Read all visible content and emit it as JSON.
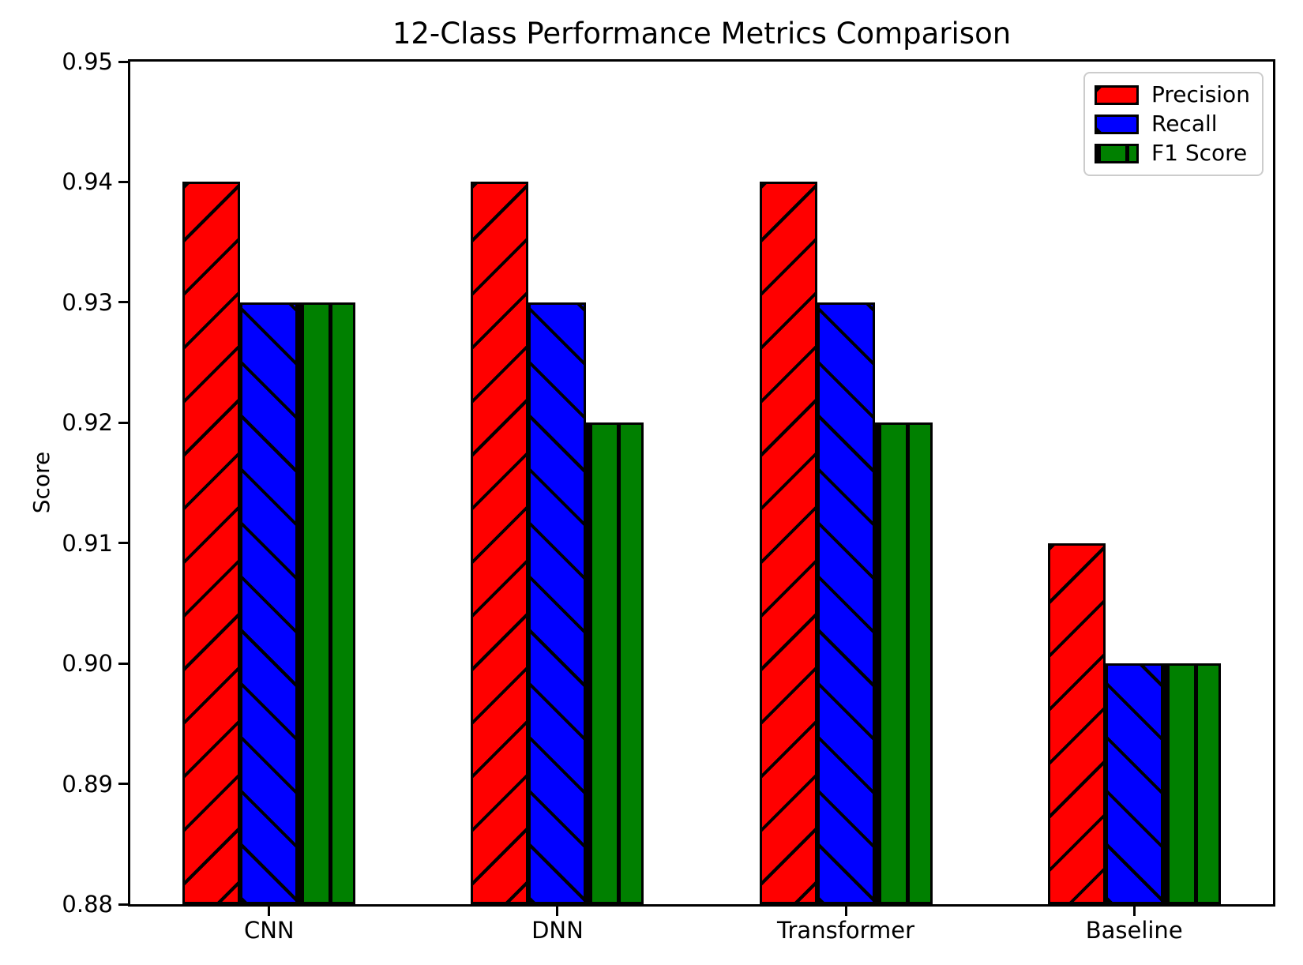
{
  "figure": {
    "background": "#ffffff",
    "axis_color": "#000000"
  },
  "chart_data": {
    "type": "bar",
    "title": "12-Class Performance Metrics Comparison",
    "xlabel": "",
    "ylabel": "Score",
    "categories": [
      "CNN",
      "DNN",
      "Transformer",
      "Baseline"
    ],
    "series": [
      {
        "name": "Precision",
        "color": "#ff0000",
        "hatch": "/",
        "values": [
          0.94,
          0.94,
          0.94,
          0.91
        ]
      },
      {
        "name": "Recall",
        "color": "#0000ff",
        "hatch": "\\",
        "values": [
          0.93,
          0.93,
          0.93,
          0.9
        ]
      },
      {
        "name": "F1 Score",
        "color": "#008000",
        "hatch": "|",
        "values": [
          0.93,
          0.92,
          0.92,
          0.9
        ]
      }
    ],
    "ylim": [
      0.88,
      0.95
    ],
    "yticks": [
      "0.88",
      "0.89",
      "0.90",
      "0.91",
      "0.92",
      "0.93",
      "0.94",
      "0.95"
    ],
    "xlim": [
      -0.4815,
      3.4815
    ],
    "bar_width": 0.2,
    "grid": false,
    "legend_position": "upper right",
    "edge_color": "#000000"
  }
}
